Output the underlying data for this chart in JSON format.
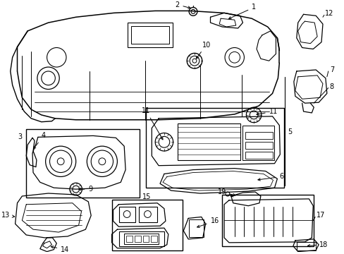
{
  "bg_color": "#ffffff",
  "line_color": "#000000",
  "lw": 1.0,
  "fig_w": 4.89,
  "fig_h": 3.6,
  "dpi": 100
}
